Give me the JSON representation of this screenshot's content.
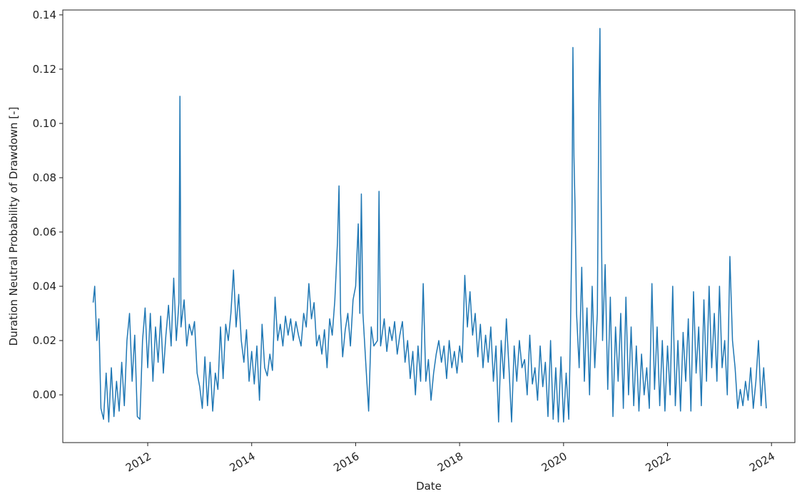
{
  "chart_data": {
    "type": "line",
    "x_label": "Date",
    "y_label": "Duration Neutral Probability of Drawdown [-]",
    "xlim": [
      2010.366,
      2024.45
    ],
    "ylim": [
      -0.0176,
      0.1418
    ],
    "xticks": [
      2012,
      2014,
      2016,
      2018,
      2020,
      2022,
      2024
    ],
    "yticks": [
      {
        "value": 0,
        "label": "0.00"
      },
      0.02,
      0.04,
      0.06,
      0.08,
      {
        "value": 0.1,
        "label": "0.10"
      },
      0.12,
      0.14
    ],
    "x": [
      2010.95,
      2010.98,
      2011.02,
      2011.06,
      2011.1,
      2011.15,
      2011.2,
      2011.25,
      2011.3,
      2011.35,
      2011.4,
      2011.45,
      2011.5,
      2011.55,
      2011.6,
      2011.65,
      2011.7,
      2011.75,
      2011.8,
      2011.85,
      2011.9,
      2011.95,
      2012.0,
      2012.05,
      2012.1,
      2012.15,
      2012.2,
      2012.25,
      2012.3,
      2012.35,
      2012.4,
      2012.45,
      2012.5,
      2012.55,
      2012.6,
      2012.62,
      2012.64,
      2012.7,
      2012.75,
      2012.8,
      2012.85,
      2012.9,
      2012.95,
      2013.0,
      2013.05,
      2013.1,
      2013.15,
      2013.2,
      2013.25,
      2013.3,
      2013.35,
      2013.4,
      2013.45,
      2013.5,
      2013.55,
      2013.6,
      2013.65,
      2013.7,
      2013.75,
      2013.8,
      2013.85,
      2013.9,
      2013.95,
      2014.0,
      2014.05,
      2014.1,
      2014.15,
      2014.2,
      2014.25,
      2014.3,
      2014.35,
      2014.4,
      2014.45,
      2014.5,
      2014.55,
      2014.6,
      2014.65,
      2014.7,
      2014.75,
      2014.8,
      2014.85,
      2014.9,
      2014.95,
      2015.0,
      2015.05,
      2015.1,
      2015.15,
      2015.2,
      2015.25,
      2015.3,
      2015.35,
      2015.4,
      2015.45,
      2015.5,
      2015.55,
      2015.6,
      2015.65,
      2015.68,
      2015.71,
      2015.75,
      2015.8,
      2015.85,
      2015.9,
      2015.95,
      2016.0,
      2016.05,
      2016.08,
      2016.11,
      2016.14,
      2016.2,
      2016.25,
      2016.3,
      2016.35,
      2016.42,
      2016.45,
      2016.48,
      2016.55,
      2016.6,
      2016.65,
      2016.7,
      2016.75,
      2016.8,
      2016.85,
      2016.9,
      2016.95,
      2017.0,
      2017.05,
      2017.1,
      2017.15,
      2017.2,
      2017.25,
      2017.3,
      2017.35,
      2017.4,
      2017.45,
      2017.5,
      2017.55,
      2017.6,
      2017.65,
      2017.7,
      2017.75,
      2017.8,
      2017.85,
      2017.9,
      2017.95,
      2018.0,
      2018.05,
      2018.1,
      2018.15,
      2018.2,
      2018.25,
      2018.3,
      2018.35,
      2018.4,
      2018.45,
      2018.5,
      2018.55,
      2018.6,
      2018.65,
      2018.7,
      2018.75,
      2018.8,
      2018.85,
      2018.9,
      2018.95,
      2019.0,
      2019.05,
      2019.1,
      2019.15,
      2019.2,
      2019.25,
      2019.3,
      2019.35,
      2019.4,
      2019.45,
      2019.5,
      2019.55,
      2019.6,
      2019.65,
      2019.7,
      2019.75,
      2019.8,
      2019.85,
      2019.9,
      2019.95,
      2020.0,
      2020.05,
      2020.1,
      2020.13,
      2020.16,
      2020.18,
      2020.2,
      2020.22,
      2020.25,
      2020.3,
      2020.35,
      2020.4,
      2020.45,
      2020.5,
      2020.55,
      2020.6,
      2020.65,
      2020.68,
      2020.7,
      2020.72,
      2020.75,
      2020.8,
      2020.85,
      2020.9,
      2020.95,
      2021.0,
      2021.05,
      2021.1,
      2021.15,
      2021.2,
      2021.25,
      2021.3,
      2021.35,
      2021.4,
      2021.45,
      2021.5,
      2021.55,
      2021.6,
      2021.65,
      2021.7,
      2021.75,
      2021.8,
      2021.85,
      2021.9,
      2021.95,
      2022.0,
      2022.05,
      2022.1,
      2022.15,
      2022.2,
      2022.25,
      2022.3,
      2022.35,
      2022.4,
      2022.45,
      2022.5,
      2022.55,
      2022.6,
      2022.65,
      2022.7,
      2022.75,
      2022.8,
      2022.85,
      2022.9,
      2022.95,
      2023.0,
      2023.05,
      2023.1,
      2023.15,
      2023.2,
      2023.25,
      2023.3,
      2023.35,
      2023.4,
      2023.45,
      2023.5,
      2023.55,
      2023.6,
      2023.65,
      2023.7,
      2023.75,
      2023.8,
      2023.85,
      2023.9
    ],
    "series": [
      {
        "color": "#1f77b4",
        "values": [
          0.034,
          0.04,
          0.02,
          0.028,
          -0.005,
          -0.009,
          0.008,
          -0.01,
          0.01,
          -0.008,
          0.005,
          -0.006,
          0.012,
          -0.004,
          0.02,
          0.03,
          0.005,
          0.022,
          -0.008,
          -0.009,
          0.02,
          0.032,
          0.01,
          0.03,
          0.005,
          0.025,
          0.012,
          0.029,
          0.008,
          0.022,
          0.033,
          0.018,
          0.043,
          0.02,
          0.034,
          0.11,
          0.025,
          0.035,
          0.018,
          0.026,
          0.022,
          0.027,
          0.008,
          0.003,
          -0.005,
          0.014,
          -0.004,
          0.012,
          -0.006,
          0.008,
          0.002,
          0.025,
          0.006,
          0.026,
          0.02,
          0.03,
          0.046,
          0.025,
          0.037,
          0.02,
          0.012,
          0.024,
          0.005,
          0.016,
          0.004,
          0.018,
          -0.002,
          0.026,
          0.01,
          0.007,
          0.015,
          0.009,
          0.036,
          0.02,
          0.026,
          0.018,
          0.029,
          0.022,
          0.028,
          0.02,
          0.027,
          0.022,
          0.018,
          0.03,
          0.025,
          0.041,
          0.028,
          0.034,
          0.018,
          0.022,
          0.015,
          0.024,
          0.01,
          0.028,
          0.022,
          0.035,
          0.056,
          0.077,
          0.03,
          0.014,
          0.024,
          0.03,
          0.018,
          0.035,
          0.04,
          0.063,
          0.03,
          0.074,
          0.03,
          0.01,
          -0.006,
          0.025,
          0.018,
          0.02,
          0.075,
          0.018,
          0.028,
          0.016,
          0.025,
          0.02,
          0.027,
          0.015,
          0.022,
          0.027,
          0.012,
          0.02,
          0.006,
          0.016,
          0.0,
          0.018,
          0.005,
          0.041,
          0.005,
          0.013,
          -0.002,
          0.008,
          0.015,
          0.02,
          0.012,
          0.018,
          0.006,
          0.02,
          0.01,
          0.016,
          0.008,
          0.018,
          0.012,
          0.044,
          0.025,
          0.038,
          0.022,
          0.03,
          0.014,
          0.026,
          0.01,
          0.022,
          0.012,
          0.025,
          0.005,
          0.018,
          -0.01,
          0.02,
          0.006,
          0.028,
          0.01,
          -0.01,
          0.018,
          0.005,
          0.02,
          0.01,
          0.013,
          0.0,
          0.022,
          0.004,
          0.01,
          -0.002,
          0.018,
          0.003,
          0.012,
          -0.008,
          0.02,
          -0.009,
          0.01,
          -0.01,
          0.014,
          -0.01,
          0.008,
          -0.009,
          0.02,
          0.06,
          0.128,
          0.088,
          0.07,
          0.03,
          0.01,
          0.047,
          0.005,
          0.032,
          0.0,
          0.04,
          0.01,
          0.03,
          0.108,
          0.135,
          0.08,
          0.02,
          0.048,
          0.002,
          0.036,
          -0.008,
          0.025,
          0.005,
          0.03,
          -0.005,
          0.036,
          0.0,
          0.025,
          -0.004,
          0.018,
          -0.006,
          0.015,
          0.0,
          0.01,
          -0.005,
          0.041,
          0.002,
          0.025,
          -0.004,
          0.02,
          -0.006,
          0.018,
          0.0,
          0.04,
          -0.004,
          0.02,
          -0.006,
          0.023,
          0.005,
          0.028,
          -0.006,
          0.038,
          0.008,
          0.025,
          -0.004,
          0.035,
          0.005,
          0.04,
          0.01,
          0.03,
          0.005,
          0.04,
          0.01,
          0.02,
          0.0,
          0.051,
          0.02,
          0.01,
          -0.005,
          0.002,
          -0.004,
          0.005,
          -0.002,
          0.01,
          -0.005,
          0.005,
          0.02,
          -0.004,
          0.01,
          -0.005
        ]
      }
    ]
  }
}
